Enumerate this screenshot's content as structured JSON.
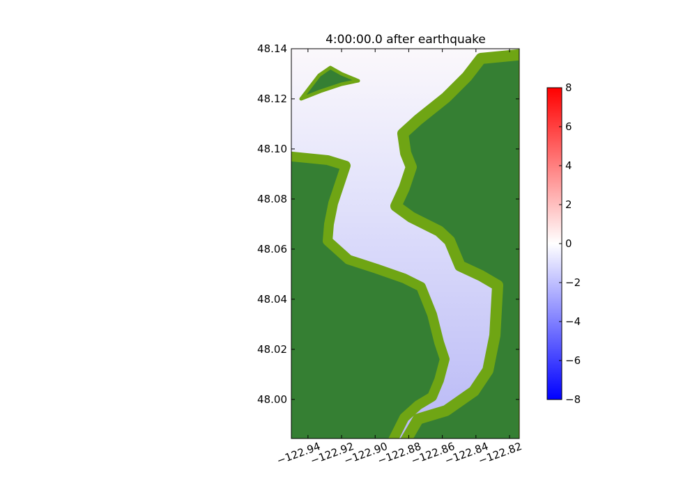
{
  "chart_data": {
    "type": "map",
    "title": "4:00:00.0 after earthquake",
    "xlim": [
      -122.9499,
      -122.8142
    ],
    "ylim": [
      47.9844,
      48.14
    ],
    "xticks": [
      {
        "value": -122.94,
        "label": "−122.94"
      },
      {
        "value": -122.92,
        "label": "−122.92"
      },
      {
        "value": -122.9,
        "label": "−122.90"
      },
      {
        "value": -122.88,
        "label": "−122.88"
      },
      {
        "value": -122.86,
        "label": "−122.86"
      },
      {
        "value": -122.84,
        "label": "−122.84"
      },
      {
        "value": -122.82,
        "label": "−122.82"
      }
    ],
    "yticks": [
      {
        "value": 48.0,
        "label": "48.00"
      },
      48.02,
      48.04,
      48.06,
      48.08,
      {
        "value": 48.1,
        "label": "48.10"
      },
      48.12,
      48.14
    ],
    "clim": [
      -8,
      8
    ],
    "colormap": [
      "#0000ff",
      "#ffffff",
      "#ff0000"
    ],
    "cticks": [
      {
        "value": -8,
        "label": "−8"
      },
      {
        "value": -6,
        "label": "−6"
      },
      {
        "value": -4,
        "label": "−4"
      },
      {
        "value": -2,
        "label": "−2"
      },
      0,
      2,
      4,
      6,
      8
    ]
  }
}
